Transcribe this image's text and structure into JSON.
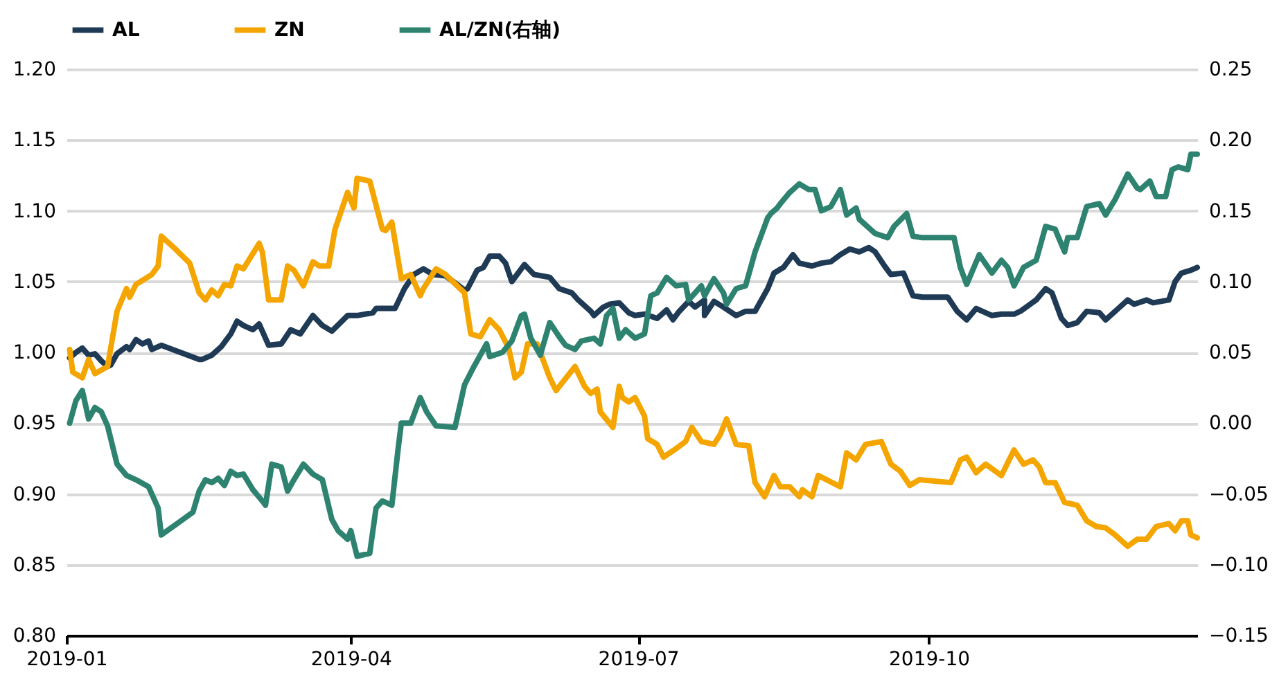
{
  "chart_data": {
    "type": "line",
    "line_style": "solid",
    "marker": "none",
    "grid": "y",
    "legend": "top",
    "xlim": [
      "2019-01-01",
      "2019-12-25"
    ],
    "xticks": [
      {
        "value": "2019-01-01",
        "label": "2019-01"
      },
      {
        "value": "2019-04-01",
        "label": "2019-04"
      },
      {
        "value": "2019-07-01",
        "label": "2019-07"
      },
      {
        "value": "2019-10-01",
        "label": "2019-10"
      }
    ],
    "ylim": [
      0.8,
      1.2
    ],
    "yticks": [
      {
        "value": 0.8,
        "label": "0.80"
      },
      {
        "value": 0.85,
        "label": "0.85"
      },
      {
        "value": 0.9,
        "label": "0.90"
      },
      {
        "value": 0.95,
        "label": "0.95"
      },
      {
        "value": 1.0,
        "label": "1.00"
      },
      {
        "value": 1.05,
        "label": "1.05"
      },
      {
        "value": 1.1,
        "label": "1.10"
      },
      {
        "value": 1.15,
        "label": "1.15"
      },
      {
        "value": 1.2,
        "label": "1.20"
      }
    ],
    "y2lim": [
      -0.15,
      0.25
    ],
    "y2ticks": [
      {
        "value": -0.15,
        "label": "−0.15"
      },
      {
        "value": -0.1,
        "label": "−0.10"
      },
      {
        "value": -0.05,
        "label": "−0.05"
      },
      {
        "value": 0,
        "label": "0.00"
      },
      {
        "value": 0.05,
        "label": "0.05"
      },
      {
        "value": 0.1,
        "label": "0.10"
      },
      {
        "value": 0.15,
        "label": "0.15"
      },
      {
        "value": 0.2,
        "label": "0.20"
      },
      {
        "value": 0.25,
        "label": "0.25"
      }
    ],
    "series": [
      {
        "name": "AL",
        "color": "#1f3a55",
        "x": [
          "2019-01-02",
          "2019-01-04",
          "2019-01-06",
          "2019-01-08",
          "2019-01-10",
          "2019-01-12",
          "2019-01-14",
          "2019-01-15",
          "2019-01-17",
          "2019-01-20",
          "2019-01-21",
          "2019-01-23",
          "2019-01-25",
          "2019-01-27",
          "2019-01-28",
          "2019-01-31",
          "2019-02-06",
          "2019-02-12",
          "2019-02-13",
          "2019-02-16",
          "2019-02-19",
          "2019-02-22",
          "2019-02-24",
          "2019-02-26",
          "2019-03-01",
          "2019-03-03",
          "2019-03-06",
          "2019-03-10",
          "2019-03-13",
          "2019-03-16",
          "2019-03-20",
          "2019-03-23",
          "2019-03-26",
          "2019-03-31",
          "2019-04-03",
          "2019-04-08",
          "2019-04-09",
          "2019-04-15",
          "2019-04-18",
          "2019-04-21",
          "2019-04-24",
          "2019-04-27",
          "2019-05-01",
          "2019-05-07",
          "2019-05-08",
          "2019-05-11",
          "2019-05-13",
          "2019-05-15",
          "2019-05-18",
          "2019-05-20",
          "2019-05-22",
          "2019-05-26",
          "2019-05-29",
          "2019-06-03",
          "2019-06-06",
          "2019-06-10",
          "2019-06-12",
          "2019-06-16",
          "2019-06-17",
          "2019-06-20",
          "2019-06-22",
          "2019-06-25",
          "2019-06-28",
          "2019-06-30",
          "2019-07-03",
          "2019-07-07",
          "2019-07-10",
          "2019-07-12",
          "2019-07-14",
          "2019-07-17",
          "2019-07-19",
          "2019-07-22",
          "2019-07-22",
          "2019-07-25",
          "2019-07-28",
          "2019-08-01",
          "2019-08-04",
          "2019-08-07",
          "2019-08-11",
          "2019-08-13",
          "2019-08-16",
          "2019-08-19",
          "2019-08-21",
          "2019-08-25",
          "2019-08-28",
          "2019-08-31",
          "2019-09-03",
          "2019-09-06",
          "2019-09-09",
          "2019-09-12",
          "2019-09-14",
          "2019-09-17",
          "2019-09-19",
          "2019-09-23",
          "2019-09-26",
          "2019-09-29",
          "2019-10-07",
          "2019-10-10",
          "2019-10-13",
          "2019-10-16",
          "2019-10-21",
          "2019-10-24",
          "2019-10-28",
          "2019-10-30",
          "2019-11-04",
          "2019-11-07",
          "2019-11-09",
          "2019-11-12",
          "2019-11-14",
          "2019-11-17",
          "2019-11-20",
          "2019-11-24",
          "2019-11-26",
          "2019-11-30",
          "2019-12-03",
          "2019-12-05",
          "2019-12-09",
          "2019-12-11",
          "2019-12-16",
          "2019-12-18",
          "2019-12-20",
          "2019-12-23",
          "2019-12-25"
        ],
        "values": [
          0.996,
          1.0,
          1.003,
          0.998,
          0.999,
          0.994,
          0.99,
          0.991,
          0.999,
          1.004,
          1.002,
          1.009,
          1.006,
          1.008,
          1.002,
          1.005,
          1.0,
          0.995,
          0.995,
          0.998,
          1.004,
          1.013,
          1.022,
          1.019,
          1.016,
          1.02,
          1.005,
          1.006,
          1.016,
          1.013,
          1.026,
          1.019,
          1.015,
          1.026,
          1.026,
          1.028,
          1.031,
          1.031,
          1.045,
          1.055,
          1.059,
          1.055,
          1.054,
          1.044,
          1.045,
          1.058,
          1.06,
          1.068,
          1.068,
          1.063,
          1.05,
          1.062,
          1.055,
          1.053,
          1.045,
          1.042,
          1.037,
          1.029,
          1.026,
          1.032,
          1.034,
          1.035,
          1.028,
          1.026,
          1.027,
          1.024,
          1.03,
          1.023,
          1.029,
          1.036,
          1.032,
          1.037,
          1.026,
          1.036,
          1.032,
          1.026,
          1.029,
          1.029,
          1.045,
          1.056,
          1.06,
          1.069,
          1.063,
          1.061,
          1.063,
          1.064,
          1.069,
          1.073,
          1.071,
          1.074,
          1.071,
          1.061,
          1.055,
          1.056,
          1.04,
          1.039,
          1.039,
          1.029,
          1.023,
          1.031,
          1.026,
          1.027,
          1.027,
          1.029,
          1.037,
          1.045,
          1.042,
          1.024,
          1.019,
          1.021,
          1.029,
          1.028,
          1.023,
          1.031,
          1.037,
          1.034,
          1.037,
          1.035,
          1.037,
          1.05,
          1.056,
          1.058,
          1.06
        ]
      },
      {
        "name": "ZN",
        "color": "#f5a500",
        "x": [
          "2019-01-02",
          "2019-01-03",
          "2019-01-06",
          "2019-01-08",
          "2019-01-10",
          "2019-01-14",
          "2019-01-17",
          "2019-01-20",
          "2019-01-21",
          "2019-01-23",
          "2019-01-28",
          "2019-01-30",
          "2019-01-31",
          "2019-02-04",
          "2019-02-09",
          "2019-02-12",
          "2019-02-14",
          "2019-02-16",
          "2019-02-18",
          "2019-02-20",
          "2019-02-22",
          "2019-02-24",
          "2019-02-26",
          "2019-03-03",
          "2019-03-04",
          "2019-03-06",
          "2019-03-10",
          "2019-03-12",
          "2019-03-14",
          "2019-03-17",
          "2019-03-20",
          "2019-03-22",
          "2019-03-25",
          "2019-03-27",
          "2019-03-31",
          "2019-04-02",
          "2019-04-03",
          "2019-04-07",
          "2019-04-11",
          "2019-04-12",
          "2019-04-14",
          "2019-04-17",
          "2019-04-20",
          "2019-04-23",
          "2019-04-24",
          "2019-04-28",
          "2019-05-01",
          "2019-05-07",
          "2019-05-09",
          "2019-05-12",
          "2019-05-15",
          "2019-05-18",
          "2019-05-21",
          "2019-05-23",
          "2019-05-25",
          "2019-05-27",
          "2019-05-30",
          "2019-05-31",
          "2019-06-03",
          "2019-06-05",
          "2019-06-11",
          "2019-06-14",
          "2019-06-16",
          "2019-06-18",
          "2019-06-19",
          "2019-06-23",
          "2019-06-25",
          "2019-06-26",
          "2019-06-28",
          "2019-06-30",
          "2019-07-03",
          "2019-07-04",
          "2019-07-07",
          "2019-07-09",
          "2019-07-13",
          "2019-07-16",
          "2019-07-18",
          "2019-07-21",
          "2019-07-25",
          "2019-07-27",
          "2019-07-29",
          "2019-08-01",
          "2019-08-05",
          "2019-08-07",
          "2019-08-10",
          "2019-08-13",
          "2019-08-15",
          "2019-08-18",
          "2019-08-21",
          "2019-08-22",
          "2019-08-25",
          "2019-08-27",
          "2019-09-03",
          "2019-09-05",
          "2019-09-08",
          "2019-09-11",
          "2019-09-16",
          "2019-09-19",
          "2019-09-22",
          "2019-09-25",
          "2019-09-28",
          "2019-10-08",
          "2019-10-11",
          "2019-10-13",
          "2019-10-16",
          "2019-10-19",
          "2019-10-24",
          "2019-10-28",
          "2019-10-31",
          "2019-11-03",
          "2019-11-05",
          "2019-11-07",
          "2019-11-10",
          "2019-11-13",
          "2019-11-17",
          "2019-11-20",
          "2019-11-23",
          "2019-11-26",
          "2019-11-29",
          "2019-12-03",
          "2019-12-06",
          "2019-12-09",
          "2019-12-12",
          "2019-12-16",
          "2019-12-18",
          "2019-12-20",
          "2019-12-22",
          "2019-12-23",
          "2019-12-25"
        ],
        "values": [
          1.002,
          0.986,
          0.982,
          0.995,
          0.985,
          0.99,
          1.029,
          1.045,
          1.039,
          1.048,
          1.055,
          1.061,
          1.082,
          1.074,
          1.063,
          1.042,
          1.037,
          1.044,
          1.04,
          1.048,
          1.047,
          1.061,
          1.059,
          1.077,
          1.071,
          1.037,
          1.037,
          1.061,
          1.058,
          1.047,
          1.064,
          1.061,
          1.061,
          1.087,
          1.113,
          1.102,
          1.123,
          1.121,
          1.087,
          1.086,
          1.092,
          1.052,
          1.055,
          1.04,
          1.045,
          1.059,
          1.055,
          1.042,
          1.013,
          1.011,
          1.023,
          1.016,
          1.003,
          0.982,
          0.986,
          1.006,
          1.006,
          1.0,
          0.982,
          0.973,
          0.99,
          0.976,
          0.971,
          0.974,
          0.958,
          0.947,
          0.976,
          0.968,
          0.965,
          0.968,
          0.955,
          0.939,
          0.935,
          0.926,
          0.932,
          0.937,
          0.947,
          0.937,
          0.935,
          0.942,
          0.953,
          0.935,
          0.934,
          0.908,
          0.898,
          0.913,
          0.905,
          0.905,
          0.898,
          0.903,
          0.898,
          0.913,
          0.905,
          0.929,
          0.924,
          0.935,
          0.937,
          0.921,
          0.916,
          0.906,
          0.91,
          0.908,
          0.924,
          0.926,
          0.915,
          0.921,
          0.913,
          0.931,
          0.921,
          0.924,
          0.919,
          0.908,
          0.908,
          0.894,
          0.892,
          0.881,
          0.877,
          0.876,
          0.871,
          0.863,
          0.868,
          0.868,
          0.877,
          0.879,
          0.874,
          0.881,
          0.881,
          0.871,
          0.869
        ]
      },
      {
        "name": "AL/ZN(右轴)",
        "color": "#2e8370",
        "axis": "y2",
        "x": [
          "2019-01-02",
          "2019-01-04",
          "2019-01-06",
          "2019-01-08",
          "2019-01-10",
          "2019-01-12",
          "2019-01-14",
          "2019-01-17",
          "2019-01-20",
          "2019-01-23",
          "2019-01-27",
          "2019-01-29",
          "2019-01-30",
          "2019-01-31",
          "2019-02-10",
          "2019-02-12",
          "2019-02-14",
          "2019-02-16",
          "2019-02-18",
          "2019-02-20",
          "2019-02-22",
          "2019-02-24",
          "2019-02-26",
          "2019-03-01",
          "2019-03-04",
          "2019-03-05",
          "2019-03-07",
          "2019-03-10",
          "2019-03-12",
          "2019-03-14",
          "2019-03-17",
          "2019-03-20",
          "2019-03-23",
          "2019-03-26",
          "2019-03-28",
          "2019-03-31",
          "2019-04-01",
          "2019-04-03",
          "2019-04-07",
          "2019-04-09",
          "2019-04-11",
          "2019-04-14",
          "2019-04-16",
          "2019-04-17",
          "2019-04-20",
          "2019-04-23",
          "2019-04-25",
          "2019-04-28",
          "2019-05-04",
          "2019-05-07",
          "2019-05-10",
          "2019-05-12",
          "2019-05-14",
          "2019-05-15",
          "2019-05-19",
          "2019-05-22",
          "2019-05-25",
          "2019-05-26",
          "2019-05-28",
          "2019-05-31",
          "2019-06-03",
          "2019-06-06",
          "2019-06-08",
          "2019-06-11",
          "2019-06-13",
          "2019-06-17",
          "2019-06-19",
          "2019-06-21",
          "2019-06-23",
          "2019-06-25",
          "2019-06-27",
          "2019-06-30",
          "2019-07-03",
          "2019-07-05",
          "2019-07-07",
          "2019-07-10",
          "2019-07-13",
          "2019-07-16",
          "2019-07-17",
          "2019-07-21",
          "2019-07-22",
          "2019-07-25",
          "2019-07-28",
          "2019-07-29",
          "2019-08-01",
          "2019-08-04",
          "2019-08-07",
          "2019-08-11",
          "2019-08-12",
          "2019-08-14",
          "2019-08-15",
          "2019-08-18",
          "2019-08-21",
          "2019-08-24",
          "2019-08-26",
          "2019-08-28",
          "2019-08-31",
          "2019-09-03",
          "2019-09-05",
          "2019-09-08",
          "2019-09-09",
          "2019-09-14",
          "2019-09-18",
          "2019-09-20",
          "2019-09-24",
          "2019-09-26",
          "2019-09-29",
          "2019-10-09",
          "2019-10-11",
          "2019-10-13",
          "2019-10-17",
          "2019-10-21",
          "2019-10-24",
          "2019-10-26",
          "2019-10-28",
          "2019-10-31",
          "2019-11-04",
          "2019-11-07",
          "2019-11-10",
          "2019-11-13",
          "2019-11-14",
          "2019-11-17",
          "2019-11-20",
          "2019-11-24",
          "2019-11-26",
          "2019-11-29",
          "2019-12-03",
          "2019-12-06",
          "2019-12-07",
          "2019-12-10",
          "2019-12-12",
          "2019-12-15",
          "2019-12-17",
          "2019-12-19",
          "2019-12-22",
          "2019-12-23",
          "2019-12-25"
        ],
        "values": [
          0.0,
          0.016,
          0.023,
          0.003,
          0.011,
          0.008,
          -0.002,
          -0.029,
          -0.037,
          -0.04,
          -0.045,
          -0.055,
          -0.06,
          -0.079,
          -0.063,
          -0.048,
          -0.04,
          -0.042,
          -0.039,
          -0.044,
          -0.034,
          -0.037,
          -0.036,
          -0.047,
          -0.055,
          -0.058,
          -0.029,
          -0.031,
          -0.048,
          -0.04,
          -0.029,
          -0.036,
          -0.04,
          -0.068,
          -0.076,
          -0.082,
          -0.076,
          -0.094,
          -0.092,
          -0.06,
          -0.055,
          -0.058,
          -0.018,
          0.0,
          0.0,
          0.018,
          0.008,
          -0.002,
          -0.003,
          0.027,
          0.04,
          0.048,
          0.056,
          0.047,
          0.05,
          0.058,
          0.076,
          0.077,
          0.06,
          0.048,
          0.071,
          0.061,
          0.055,
          0.052,
          0.058,
          0.06,
          0.056,
          0.076,
          0.081,
          0.06,
          0.066,
          0.06,
          0.063,
          0.09,
          0.092,
          0.103,
          0.097,
          0.098,
          0.087,
          0.097,
          0.09,
          0.102,
          0.092,
          0.084,
          0.095,
          0.097,
          0.121,
          0.145,
          0.148,
          0.152,
          0.155,
          0.163,
          0.169,
          0.165,
          0.165,
          0.15,
          0.153,
          0.165,
          0.147,
          0.152,
          0.144,
          0.134,
          0.131,
          0.139,
          0.148,
          0.132,
          0.131,
          0.131,
          0.11,
          0.098,
          0.119,
          0.106,
          0.115,
          0.11,
          0.097,
          0.11,
          0.115,
          0.139,
          0.137,
          0.121,
          0.131,
          0.131,
          0.153,
          0.155,
          0.147,
          0.158,
          0.176,
          0.166,
          0.165,
          0.171,
          0.16,
          0.16,
          0.179,
          0.181,
          0.179,
          0.19,
          0.19
        ]
      }
    ]
  }
}
